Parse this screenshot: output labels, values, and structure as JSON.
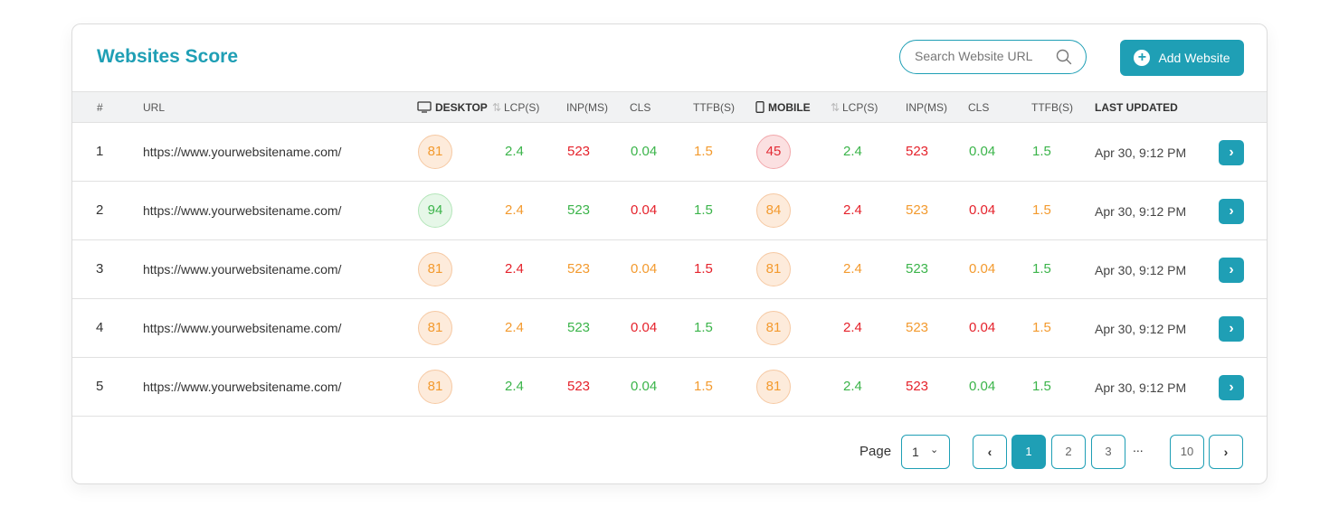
{
  "header": {
    "title": "Websites Score",
    "search_placeholder": "Search Website URL",
    "add_label": "Add Website"
  },
  "columns": {
    "num": "#",
    "url": "URL",
    "desktop": "DESKTOP",
    "lcp": "LCP(S)",
    "inp": "INP(MS)",
    "cls": "CLS",
    "ttfb": "TTFB(S)",
    "mobile": "MOBILE",
    "lcp2": "LCP(S)",
    "inp2": "INP(MS)",
    "cls2": "CLS",
    "ttfb2": "TTFB(S)",
    "updated": "LAST UPDATED"
  },
  "rows": [
    {
      "num": "1",
      "url": "https://www.yourwebsitename.com/",
      "d_score": "81",
      "d_lcp": "2.4",
      "d_inp": "523",
      "d_cls": "0.04",
      "d_ttfb": "1.5",
      "m_score": "45",
      "m_lcp": "2.4",
      "m_inp": "523",
      "m_cls": "0.04",
      "m_ttfb": "1.5",
      "updated": "Apr 30, 9:12 PM"
    },
    {
      "num": "2",
      "url": "https://www.yourwebsitename.com/",
      "d_score": "94",
      "d_lcp": "2.4",
      "d_inp": "523",
      "d_cls": "0.04",
      "d_ttfb": "1.5",
      "m_score": "84",
      "m_lcp": "2.4",
      "m_inp": "523",
      "m_cls": "0.04",
      "m_ttfb": "1.5",
      "updated": "Apr 30, 9:12 PM"
    },
    {
      "num": "3",
      "url": "https://www.yourwebsitename.com/",
      "d_score": "81",
      "d_lcp": "2.4",
      "d_inp": "523",
      "d_cls": "0.04",
      "d_ttfb": "1.5",
      "m_score": "81",
      "m_lcp": "2.4",
      "m_inp": "523",
      "m_cls": "0.04",
      "m_ttfb": "1.5",
      "updated": "Apr 30, 9:12 PM"
    },
    {
      "num": "4",
      "url": "https://www.yourwebsitename.com/",
      "d_score": "81",
      "d_lcp": "2.4",
      "d_inp": "523",
      "d_cls": "0.04",
      "d_ttfb": "1.5",
      "m_score": "81",
      "m_lcp": "2.4",
      "m_inp": "523",
      "m_cls": "0.04",
      "m_ttfb": "1.5",
      "updated": "Apr 30, 9:12 PM"
    },
    {
      "num": "5",
      "url": "https://www.yourwebsitename.com/",
      "d_score": "81",
      "d_lcp": "2.4",
      "d_inp": "523",
      "d_cls": "0.04",
      "d_ttfb": "1.5",
      "m_score": "81",
      "m_lcp": "2.4",
      "m_inp": "523",
      "m_cls": "0.04",
      "m_ttfb": "1.5",
      "updated": "Apr 30, 9:12 PM"
    }
  ],
  "pagination": {
    "page_label": "Page",
    "page_select": "1",
    "pages": [
      "1",
      "2",
      "3"
    ],
    "ellipsis": "...",
    "last": "10",
    "current": "1"
  },
  "colors": {
    "accent": "#1f9fb5",
    "good": "#3bb44a",
    "needs_improvement": "#f39a2e",
    "poor": "#e5222b"
  }
}
